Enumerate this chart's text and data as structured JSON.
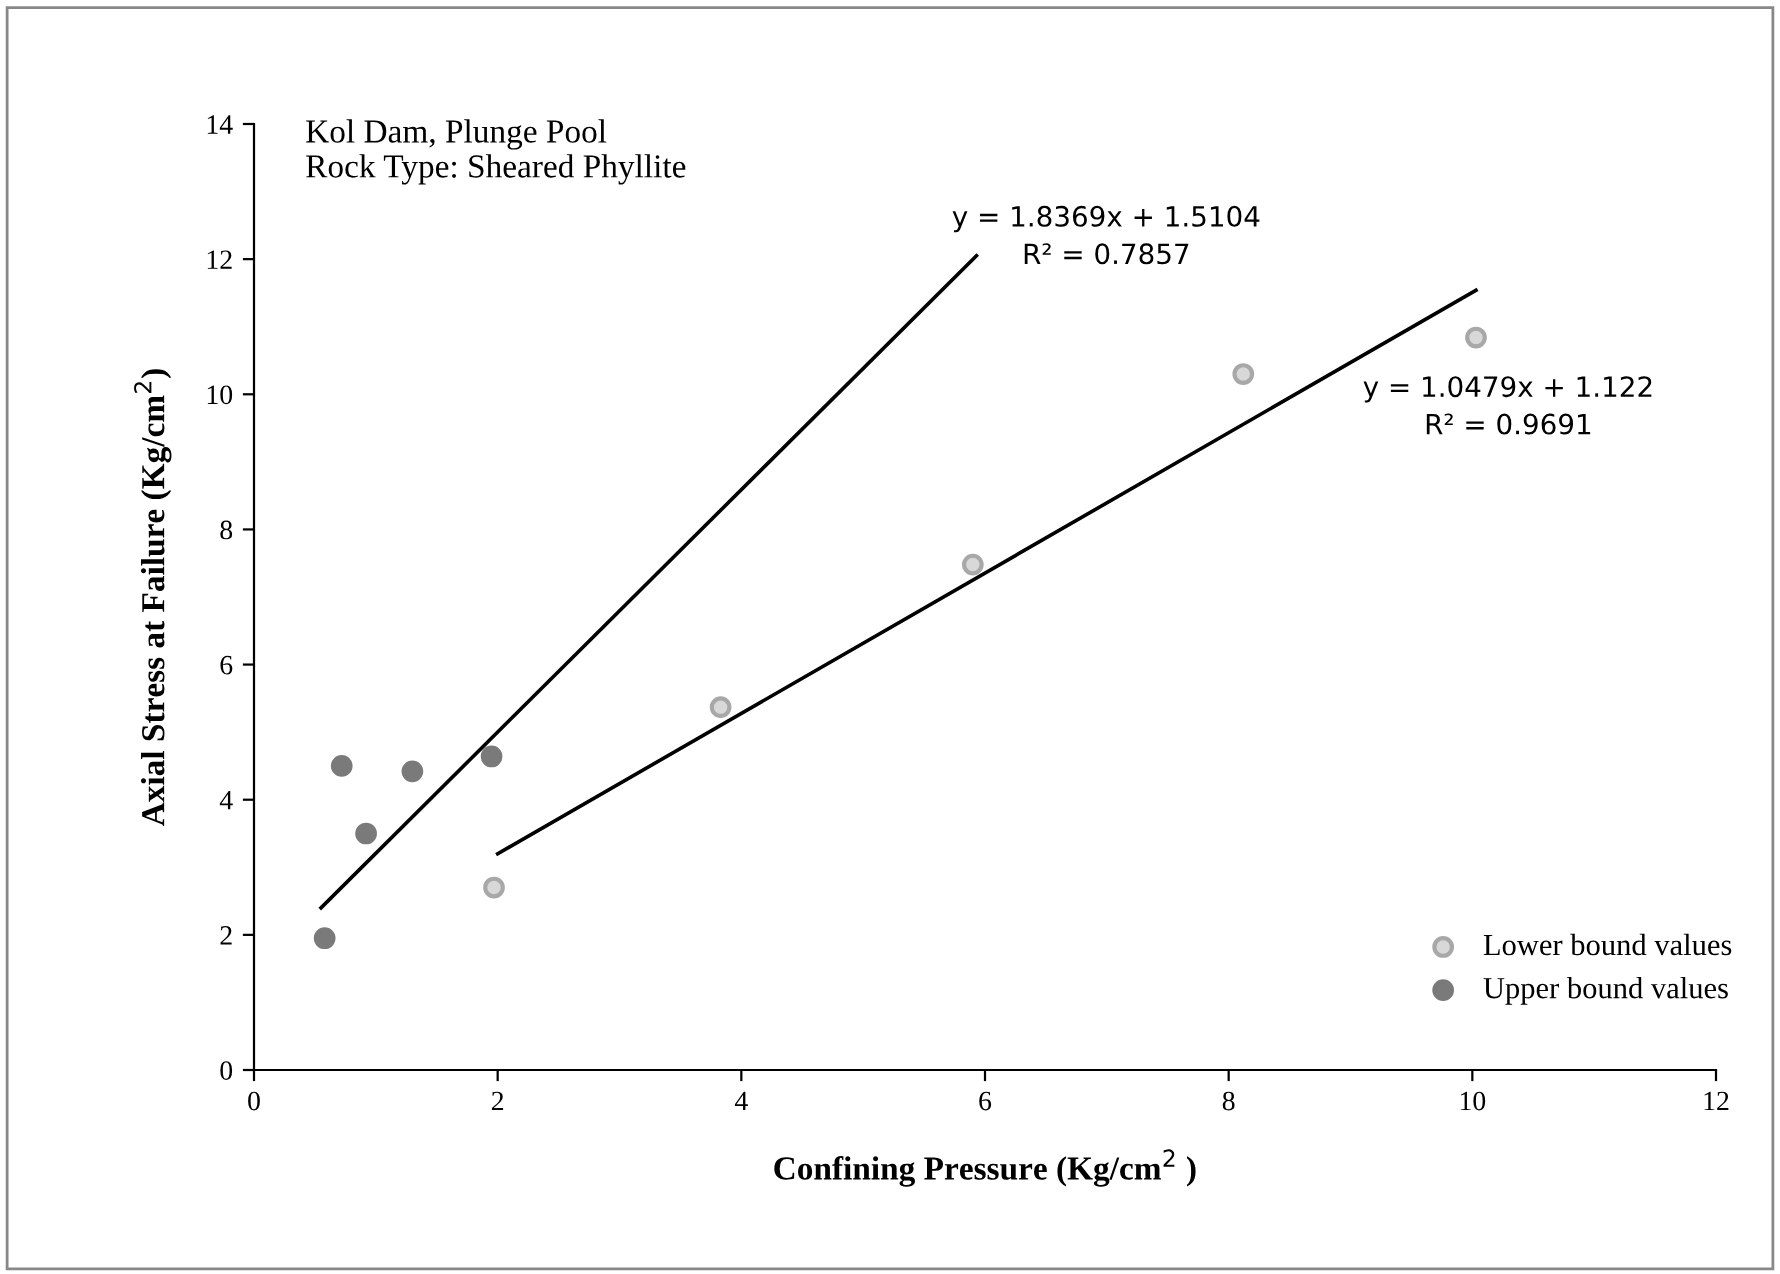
{
  "chart_data": {
    "type": "scatter",
    "title": "Kol Dam, Plunge Pool",
    "subtitle": "Rock Type: Sheared Phyllite",
    "xlabel": "Confining Pressure (Kg/cm$^{2}$ )",
    "ylabel": "Axial Stress at Failure (Kg/cm$^{2}$)",
    "xlim": [
      0,
      12
    ],
    "xticks": [
      0,
      2,
      4,
      6,
      8,
      10,
      12
    ],
    "ylim": [
      0,
      14
    ],
    "yticks": [
      0,
      2,
      4,
      6,
      8,
      10,
      12,
      14
    ],
    "grid": false,
    "legend": "bottom right",
    "series": [
      {
        "name": "Lower bound values",
        "marker": "circle",
        "color": "#a8a8a8",
        "x": [
          1.97,
          3.83,
          5.9,
          8.12,
          10.03
        ],
        "values": [
          2.7,
          5.37,
          7.48,
          10.3,
          10.84
        ]
      },
      {
        "name": "Upper bound values",
        "marker": "circle",
        "color": "#7a7a7a",
        "x": [
          0.58,
          0.72,
          0.92,
          1.3,
          1.95
        ],
        "values": [
          1.95,
          4.5,
          3.5,
          4.42,
          4.64
        ]
      },
      {
        "type": "line",
        "marker": "none",
        "color": "#000000",
        "x": [
          0.55,
          5.93
        ],
        "values": [
          2.4,
          12.05
        ]
      },
      {
        "type": "line",
        "marker": "none",
        "color": "#000000",
        "x": [
          2.0,
          10.03
        ],
        "values": [
          3.2,
          11.54
        ]
      }
    ],
    "annotations": [
      "y = 1.8369x + 1.5104\nR² = 0.7857",
      "y = 1.0479x + 1.122\nR² = 0.9691"
    ]
  }
}
